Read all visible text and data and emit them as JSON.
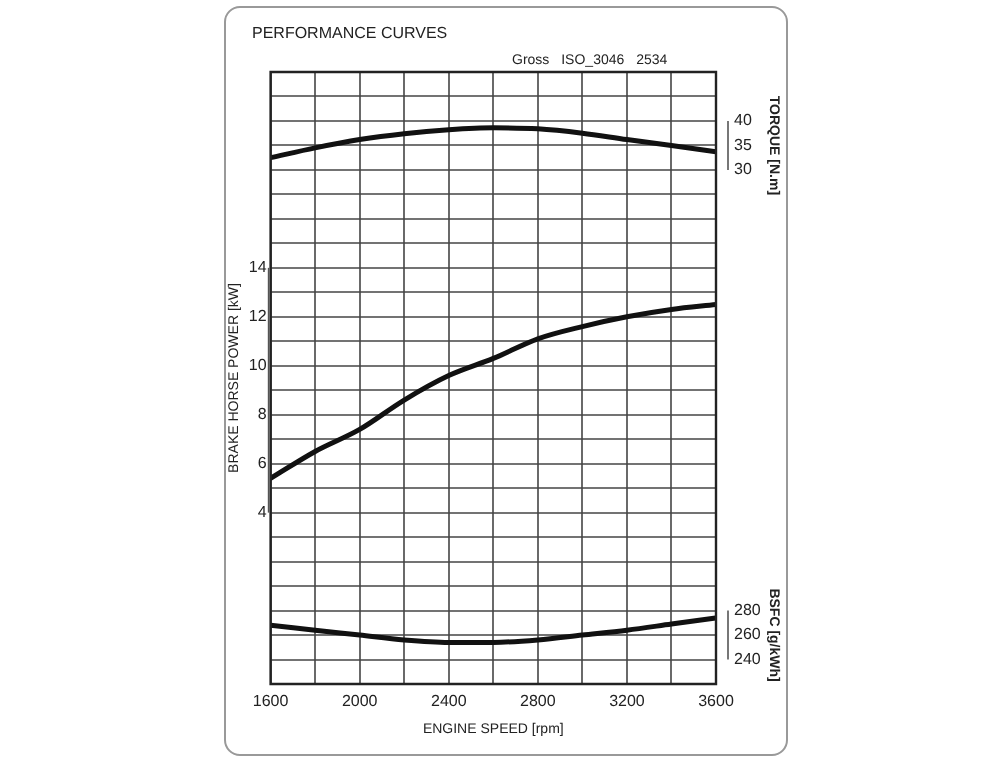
{
  "chart_data": {
    "type": "line",
    "title": "PERFORMANCE CURVES",
    "annotations": [
      "Gross",
      "ISO_3046  2534"
    ],
    "xlabel": "ENGINE SPEED [rpm]",
    "ylabel": "BRAKE HORSE POWER [kW]",
    "y2label": "TORQUE [N.m]",
    "y3label": "BSFC [g/kWh]",
    "x": [
      1600,
      1800,
      2000,
      2200,
      2400,
      2600,
      2800,
      3000,
      3200,
      3400,
      3600
    ],
    "xlim": [
      1600,
      3600
    ],
    "xticks": [
      1600,
      {
        "value": 1800,
        "label": null
      },
      2000,
      {
        "value": 2200,
        "label": null
      },
      2400,
      {
        "value": 2600,
        "label": null
      },
      2800,
      {
        "value": 3000,
        "label": null
      },
      3200,
      {
        "value": 3400,
        "label": null
      },
      3600
    ],
    "ylim": [
      -3,
      22
    ],
    "yticks": [
      {
        "value": -3,
        "label": null
      },
      {
        "value": -2,
        "label": null
      },
      {
        "value": -1,
        "label": null
      },
      {
        "value": 0,
        "label": null
      },
      {
        "value": 1,
        "label": null
      },
      {
        "value": 2,
        "label": null
      },
      {
        "value": 3,
        "label": null
      },
      4,
      {
        "value": 5,
        "label": null
      },
      6,
      {
        "value": 7,
        "label": null
      },
      8,
      {
        "value": 9,
        "label": null
      },
      10,
      {
        "value": 11,
        "label": null
      },
      12,
      {
        "value": 13,
        "label": null
      },
      14,
      {
        "value": 15,
        "label": null
      },
      {
        "value": 16,
        "label": null
      },
      {
        "value": 17,
        "label": null
      },
      {
        "value": 18,
        "label": null
      },
      {
        "value": 19,
        "label": null
      },
      {
        "value": 20,
        "label": null
      },
      {
        "value": 21,
        "label": null
      },
      {
        "value": 22,
        "label": null
      }
    ],
    "y2lim": [
      -75,
      50
    ],
    "y2ticks": [
      30,
      35,
      40
    ],
    "y3lim": [
      220,
      720
    ],
    "y3ticks": [
      240,
      260,
      280
    ],
    "grid": true,
    "legend": false,
    "marker": "none",
    "line_style": "solid",
    "series": [
      {
        "color": "#111111",
        "axis": "y2",
        "values": [
          32.5,
          34.5,
          36.2,
          37.4,
          38.2,
          38.6,
          38.4,
          37.5,
          36.2,
          35.0,
          33.7
        ]
      },
      {
        "color": "#111111",
        "axis": "y",
        "values": [
          5.4,
          6.5,
          7.4,
          8.6,
          9.6,
          10.3,
          11.1,
          11.6,
          12.0,
          12.3,
          12.5
        ]
      },
      {
        "color": "#111111",
        "axis": "y3",
        "values": [
          268,
          264,
          260,
          256,
          254,
          254,
          256,
          260,
          264,
          269,
          274
        ]
      }
    ]
  }
}
